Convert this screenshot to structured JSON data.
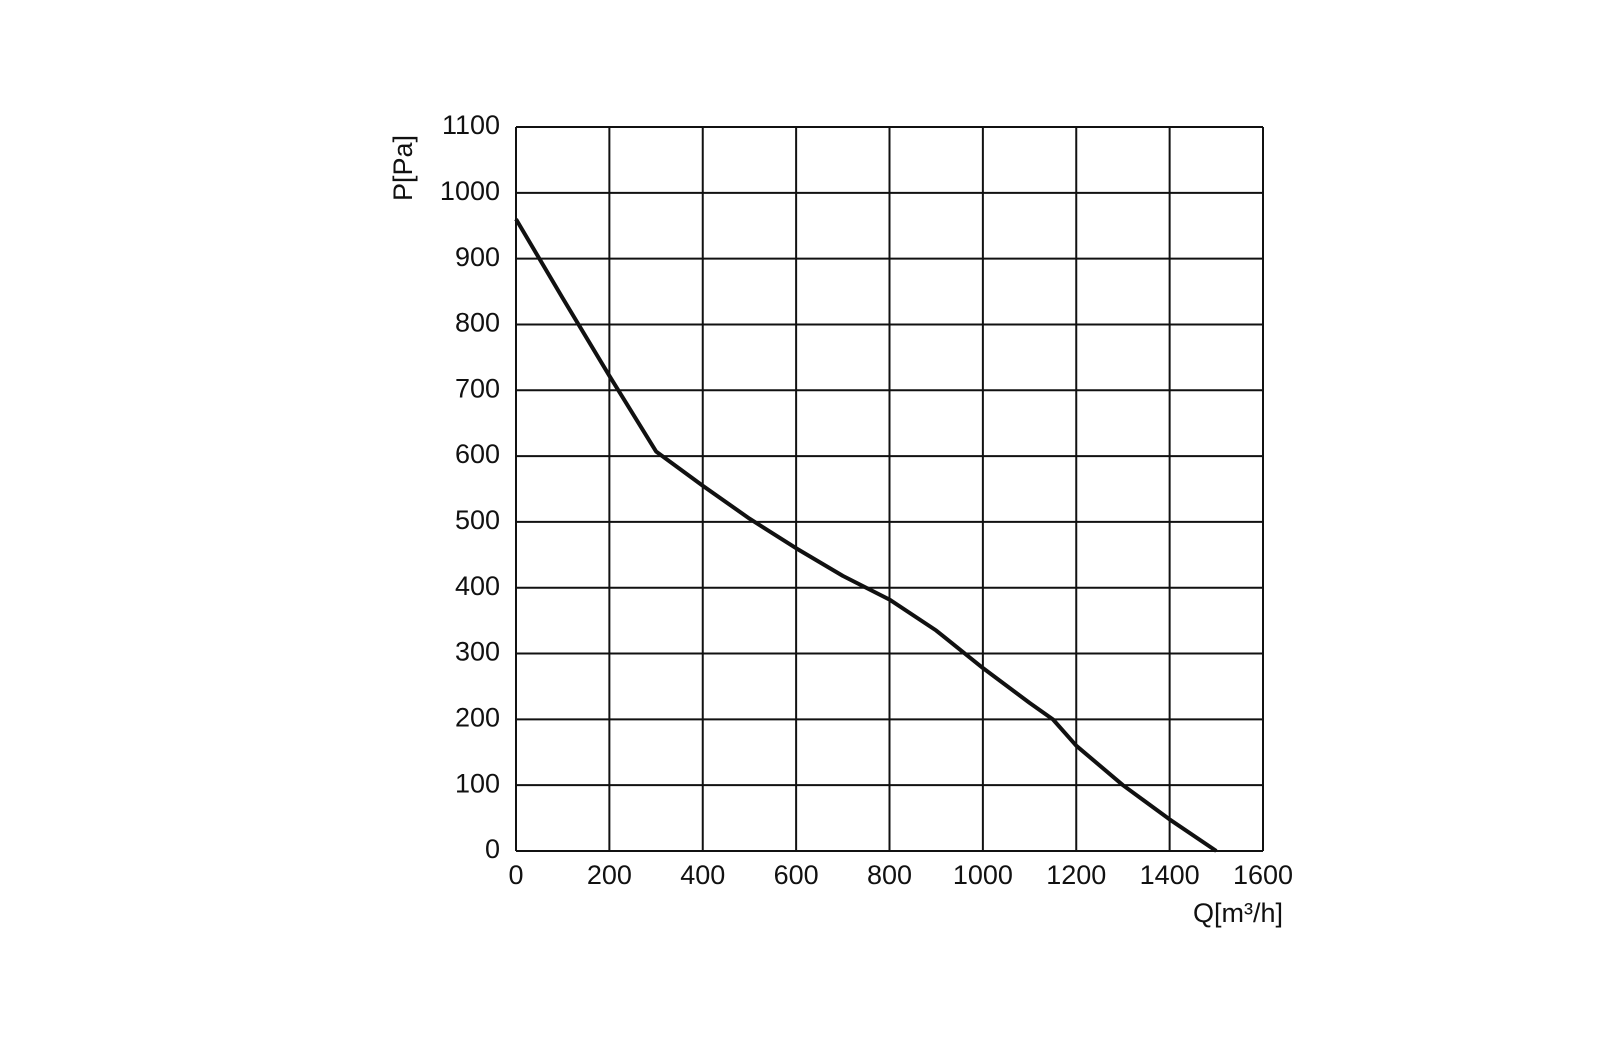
{
  "chart_data": {
    "type": "line",
    "x_label": "Q[m³/h]",
    "y_label": "P[Pa]",
    "x": [
      0,
      100,
      200,
      300,
      400,
      500,
      600,
      700,
      800,
      900,
      1000,
      1100,
      1150,
      1200,
      1300,
      1400,
      1500
    ],
    "series": [
      {
        "color": "#111111",
        "values": [
          960,
          840,
          722,
          607,
          555,
          505,
          460,
          418,
          382,
          335,
          278,
          225,
          200,
          160,
          100,
          48,
          0
        ]
      }
    ],
    "xlim": [
      0,
      1600
    ],
    "xticks": [
      0,
      200,
      400,
      600,
      800,
      1000,
      1200,
      1400,
      1600
    ],
    "ylim": [
      0,
      1100
    ],
    "yticks": [
      0,
      100,
      200,
      300,
      400,
      500,
      600,
      700,
      800,
      900,
      1000,
      1100
    ],
    "grid": true
  }
}
